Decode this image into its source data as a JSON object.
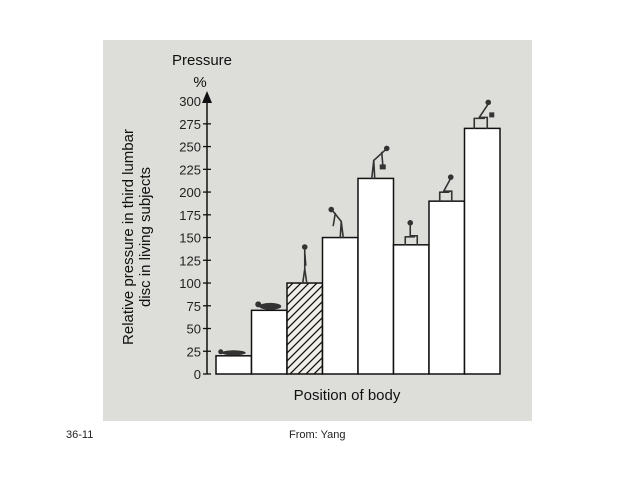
{
  "footer": {
    "slide_number": "36-11",
    "source": "From: Yang"
  },
  "colors": {
    "panel_background": "#ddddd9",
    "bar_fill": "#ffffff",
    "bar_stroke": "#111111",
    "hatch_bar_fill": "#f0eee8",
    "figure_icon": "#333333"
  },
  "chart_data": {
    "type": "bar",
    "title": "",
    "pressure_label": "Pressure",
    "pressure_unit": "%",
    "ylabel_line1": "Relative pressure in third lumbar",
    "ylabel_line2": "disc in living subjects",
    "xlabel": "Position of body",
    "ylim": [
      0,
      310
    ],
    "yticks": [
      0,
      25,
      50,
      75,
      100,
      125,
      150,
      175,
      200,
      225,
      250,
      275,
      300
    ],
    "grid": false,
    "legend": "none",
    "bars": [
      {
        "value": 20,
        "pattern": "solid",
        "posture_icon": "supine-lying-icon"
      },
      {
        "value": 70,
        "pattern": "solid",
        "posture_icon": "side-lying-icon"
      },
      {
        "value": 100,
        "pattern": "hatched",
        "posture_icon": "standing-upright-icon"
      },
      {
        "value": 150,
        "pattern": "solid",
        "posture_icon": "standing-bent-forward-icon"
      },
      {
        "value": 215,
        "pattern": "solid",
        "posture_icon": "standing-bent-lifting-icon"
      },
      {
        "value": 142,
        "pattern": "solid",
        "posture_icon": "sitting-upright-icon"
      },
      {
        "value": 190,
        "pattern": "solid",
        "posture_icon": "sitting-bent-forward-icon"
      },
      {
        "value": 270,
        "pattern": "solid",
        "posture_icon": "sitting-bent-lifting-icon"
      }
    ]
  }
}
